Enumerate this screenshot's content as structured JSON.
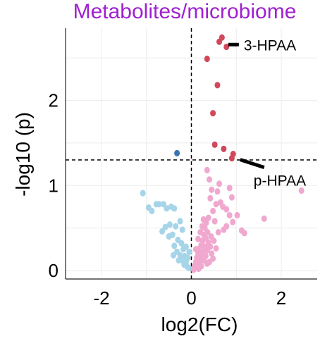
{
  "chart_data": {
    "type": "scatter",
    "title": "Metabolites/microbiome",
    "xlabel": "log2(FC)",
    "ylabel": "-log10 (p)",
    "xlim": [
      -2.8,
      2.8
    ],
    "ylim": [
      -0.1,
      2.85
    ],
    "x_ticks": [
      "-2",
      "0",
      "2"
    ],
    "y_ticks": [
      "0",
      "1",
      "2"
    ],
    "grid": true,
    "thresholds": {
      "x": 0,
      "y": 1.3
    },
    "colors": {
      "sig_up": "#d0485a",
      "sig_down": "#3b76b0",
      "ns_up": "#f0a8cf",
      "ns_down": "#a6d4e8",
      "title": "#a020d0"
    },
    "series": [
      {
        "group": "sig_up",
        "points": [
          [
            0.68,
            2.74
          ],
          [
            0.62,
            2.69
          ],
          [
            0.78,
            2.63
          ],
          [
            0.35,
            2.49
          ],
          [
            0.58,
            2.18
          ],
          [
            0.48,
            1.85
          ],
          [
            0.52,
            1.48
          ],
          [
            0.72,
            1.43
          ],
          [
            0.93,
            1.37
          ],
          [
            0.9,
            1.32
          ]
        ]
      },
      {
        "group": "sig_down",
        "points": [
          [
            -0.32,
            1.38
          ]
        ]
      },
      {
        "group": "ns_up",
        "points": [
          [
            2.45,
            0.94
          ],
          [
            1.62,
            0.61
          ],
          [
            1.12,
            0.47
          ],
          [
            1.18,
            0.44
          ],
          [
            1.02,
            0.65
          ],
          [
            0.92,
            0.57
          ],
          [
            0.85,
            0.65
          ],
          [
            0.78,
            0.52
          ],
          [
            0.72,
            0.48
          ],
          [
            0.7,
            0.75
          ],
          [
            0.78,
            0.72
          ],
          [
            0.65,
            0.8
          ],
          [
            0.55,
            0.78
          ],
          [
            0.48,
            0.7
          ],
          [
            0.58,
            0.93
          ],
          [
            0.45,
            0.95
          ],
          [
            0.62,
            1.02
          ],
          [
            0.85,
            0.97
          ],
          [
            0.9,
            0.86
          ],
          [
            0.35,
            1.18
          ],
          [
            0.4,
            1.07
          ],
          [
            0.42,
            0.85
          ],
          [
            0.38,
            0.62
          ],
          [
            0.33,
            0.56
          ],
          [
            0.3,
            0.5
          ],
          [
            0.36,
            0.45
          ],
          [
            0.28,
            0.42
          ],
          [
            0.32,
            0.38
          ],
          [
            0.25,
            0.35
          ],
          [
            0.38,
            0.33
          ],
          [
            0.22,
            0.3
          ],
          [
            0.3,
            0.28
          ],
          [
            0.18,
            0.26
          ],
          [
            0.35,
            0.24
          ],
          [
            0.26,
            0.22
          ],
          [
            0.15,
            0.2
          ],
          [
            0.22,
            0.18
          ],
          [
            0.32,
            0.17
          ],
          [
            0.12,
            0.15
          ],
          [
            0.2,
            0.13
          ],
          [
            0.28,
            0.12
          ],
          [
            0.1,
            0.1
          ],
          [
            0.18,
            0.09
          ],
          [
            0.14,
            0.07
          ],
          [
            0.08,
            0.06
          ],
          [
            0.22,
            0.05
          ],
          [
            0.12,
            0.04
          ],
          [
            0.06,
            0.03
          ],
          [
            0.16,
            0.02
          ],
          [
            0.05,
            0.01
          ],
          [
            0.42,
            0.28
          ],
          [
            0.45,
            0.2
          ],
          [
            0.48,
            0.14
          ],
          [
            0.4,
            0.1
          ],
          [
            0.35,
            0.08
          ],
          [
            0.55,
            0.26
          ],
          [
            0.5,
            0.35
          ],
          [
            0.44,
            0.4
          ],
          [
            0.27,
            0.6
          ],
          [
            0.2,
            0.45
          ],
          [
            0.15,
            0.37
          ],
          [
            0.6,
            0.45
          ],
          [
            0.1,
            0.25
          ],
          [
            0.24,
            0.52
          ],
          [
            0.52,
            0.58
          ]
        ]
      },
      {
        "group": "ns_down",
        "points": [
          [
            -1.08,
            0.91
          ],
          [
            -0.95,
            0.74
          ],
          [
            -0.88,
            0.7
          ],
          [
            -0.78,
            0.78
          ],
          [
            -0.72,
            0.78
          ],
          [
            -0.62,
            0.78
          ],
          [
            -0.55,
            0.73
          ],
          [
            -0.45,
            0.75
          ],
          [
            -0.38,
            0.73
          ],
          [
            -0.48,
            0.54
          ],
          [
            -0.58,
            0.51
          ],
          [
            -0.35,
            0.52
          ],
          [
            -0.25,
            0.58
          ],
          [
            -0.2,
            0.48
          ],
          [
            -0.42,
            0.42
          ],
          [
            -0.5,
            0.4
          ],
          [
            -0.65,
            0.46
          ],
          [
            -0.3,
            0.36
          ],
          [
            -0.38,
            0.29
          ],
          [
            -0.22,
            0.32
          ],
          [
            -0.32,
            0.22
          ],
          [
            -0.18,
            0.25
          ],
          [
            -0.25,
            0.18
          ],
          [
            -0.15,
            0.17
          ],
          [
            -0.2,
            0.12
          ],
          [
            -0.12,
            0.1
          ],
          [
            -0.16,
            0.07
          ],
          [
            -0.1,
            0.05
          ],
          [
            -0.06,
            0.03
          ],
          [
            -0.28,
            0.12
          ],
          [
            -0.08,
            0.15
          ],
          [
            -0.05,
            0.22
          ],
          [
            -0.12,
            0.28
          ],
          [
            -0.4,
            0.18
          ]
        ]
      }
    ],
    "annotations": [
      {
        "label": "3-HPAA",
        "x": 0.68,
        "y": 2.74
      },
      {
        "label": "p-HPAA",
        "x": 0.93,
        "y": 1.37
      }
    ]
  }
}
